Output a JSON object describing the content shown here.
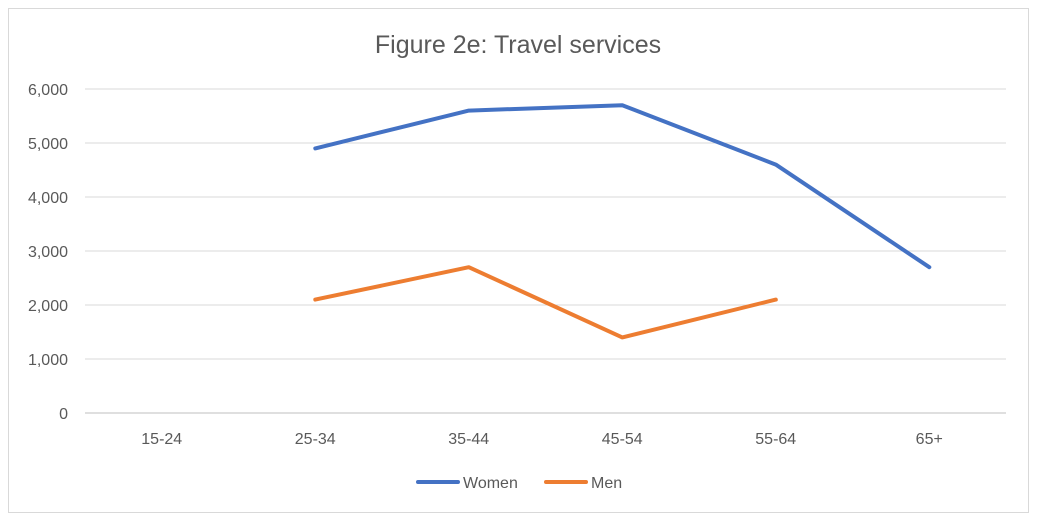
{
  "chart_data": {
    "type": "line",
    "title": "Figure 2e: Travel services",
    "xlabel": "",
    "ylabel": "",
    "categories": [
      "15-24",
      "25-34",
      "35-44",
      "45-54",
      "55-64",
      "65+"
    ],
    "ylim": [
      0,
      6000
    ],
    "yticks": [
      0,
      1000,
      2000,
      3000,
      4000,
      5000,
      6000
    ],
    "ytick_labels": [
      "0",
      "1,000",
      "2,000",
      "3,000",
      "4,000",
      "5,000",
      "6,000"
    ],
    "grid": true,
    "legend_position": "bottom",
    "series": [
      {
        "name": "Women",
        "color": "#4472c4",
        "values": [
          null,
          4900,
          5600,
          5700,
          4600,
          2700
        ]
      },
      {
        "name": "Men",
        "color": "#ed7d31",
        "values": [
          null,
          2100,
          2700,
          1400,
          2100,
          null
        ]
      }
    ]
  }
}
